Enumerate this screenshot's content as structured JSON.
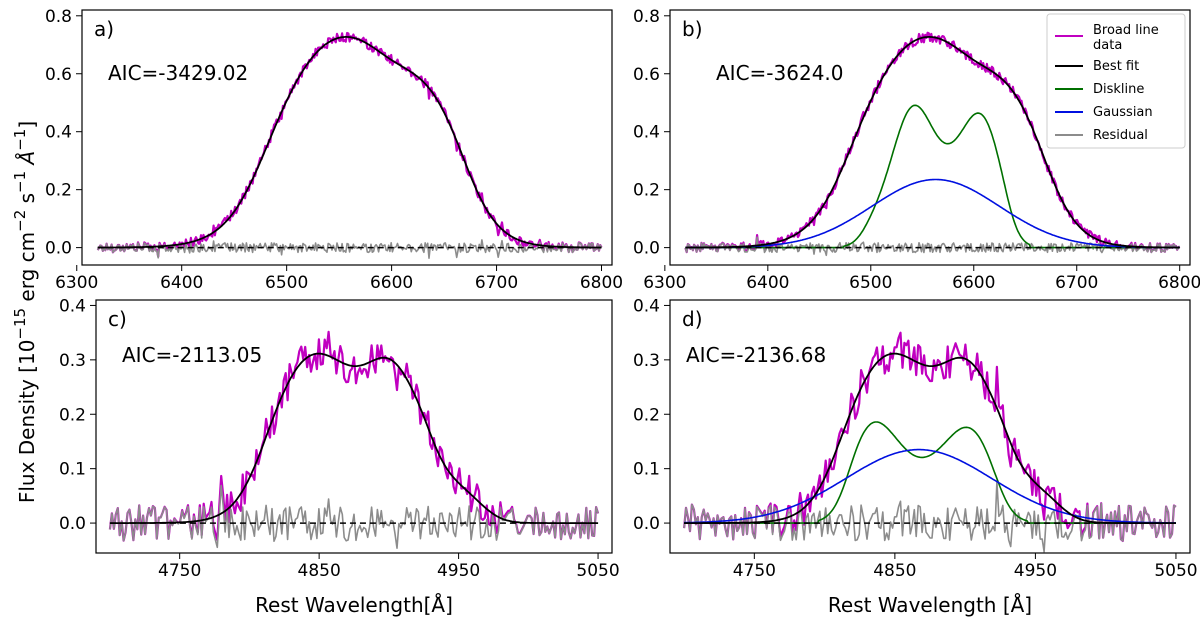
{
  "colors": {
    "data": "#c000c0",
    "fit": "#000000",
    "diskline": "#007000",
    "gaussian": "#0010e0",
    "residual": "#8c8c8c",
    "zero": "#000000"
  },
  "ylabel": "Flux Density [10",
  "ylabel_exp": "−15",
  "ylabel_units": " erg cm",
  "ylabel_units_exp": "−2",
  "ylabel_s": " s",
  "ylabel_s_exp": "−1",
  "ylabel_A": " Å",
  "ylabel_A_exp": "−1",
  "ylabel_close": "]",
  "legend": {
    "items": [
      {
        "key": "data",
        "label": "Broad line",
        "label2": " data"
      },
      {
        "key": "fit",
        "label": "Best fit"
      },
      {
        "key": "diskline",
        "label": "Diskline"
      },
      {
        "key": "gaussian",
        "label": "Gaussian"
      },
      {
        "key": "residual",
        "label": "Residual"
      }
    ]
  },
  "chart_data": [
    {
      "type": "line",
      "panel": "a)",
      "aic": "AIC=-3429.02",
      "xlim": [
        6305,
        6810
      ],
      "ylim": [
        -0.06,
        0.82
      ],
      "xticks": [
        6300,
        6400,
        6500,
        6600,
        6700,
        6800
      ],
      "yticks": [
        0.0,
        0.2,
        0.4,
        0.6,
        0.8
      ],
      "ytick_labels": [
        "0.0",
        "0.2",
        "0.4",
        "0.6",
        "0.8"
      ],
      "xlabel": "",
      "line": "halpha",
      "x_range": [
        6320,
        6800
      ],
      "fit": {
        "plateau_left": 6480,
        "plateau_right": 6665,
        "edge_width": 22,
        "peaks": [
          [
            6548,
            0.745,
            80
          ],
          [
            6600,
            0.66,
            40
          ]
        ]
      },
      "diskline": null,
      "gaussian": null
    },
    {
      "type": "line",
      "panel": "b)",
      "aic": "AIC=-3624.0",
      "xlim": [
        6305,
        6810
      ],
      "ylim": [
        -0.06,
        0.82
      ],
      "xticks": [
        6300,
        6400,
        6500,
        6600,
        6700,
        6800
      ],
      "yticks": [
        0.0,
        0.2,
        0.4,
        0.6,
        0.8
      ],
      "ytick_labels": [
        "0.0",
        "0.2",
        "0.4",
        "0.6",
        "0.8"
      ],
      "xlabel": "",
      "line": "halpha",
      "x_range": [
        6320,
        6800
      ],
      "diskline": {
        "left": 6473,
        "right": 6655,
        "peak1": [
          6540,
          0.515
        ],
        "dip": [
          6578,
          0.465
        ],
        "peak2": [
          6608,
          0.475
        ]
      },
      "gaussian": {
        "center": 6563,
        "amp": 0.235,
        "sigma": 62
      },
      "legend": true
    },
    {
      "type": "line",
      "panel": "c)",
      "aic": "AIC=-2113.05",
      "xlim": [
        4690,
        5060
      ],
      "ylim": [
        -0.055,
        0.41
      ],
      "xticks": [
        4750,
        4850,
        4950,
        5050
      ],
      "yticks": [
        0.0,
        0.1,
        0.2,
        0.3,
        0.4
      ],
      "ytick_labels": [
        "0.0",
        "0.1",
        "0.2",
        "0.3",
        "0.4"
      ],
      "xlabel": "Rest Wavelength[Å]",
      "line": "hbeta",
      "x_range": [
        4700,
        5050
      ],
      "diskline": null,
      "gaussian": null
    },
    {
      "type": "line",
      "panel": "d)",
      "aic": "AIC=-2136.68",
      "xlim": [
        4690,
        5060
      ],
      "ylim": [
        -0.055,
        0.41
      ],
      "xticks": [
        4750,
        4850,
        4950,
        5050
      ],
      "yticks": [
        0.0,
        0.1,
        0.2,
        0.3,
        0.4
      ],
      "ytick_labels": [
        "0.0",
        "0.1",
        "0.2",
        "0.3",
        "0.4"
      ],
      "xlabel": "Rest Wavelength [Å]",
      "line": "hbeta",
      "x_range": [
        4700,
        5050
      ],
      "diskline": {
        "left": 4795,
        "right": 4945,
        "peak1": [
          4832,
          0.2
        ],
        "dip": [
          4868,
          0.155
        ],
        "peak2": [
          4905,
          0.188
        ]
      },
      "gaussian": {
        "center": 4867,
        "amp": 0.135,
        "sigma": 52
      }
    }
  ]
}
